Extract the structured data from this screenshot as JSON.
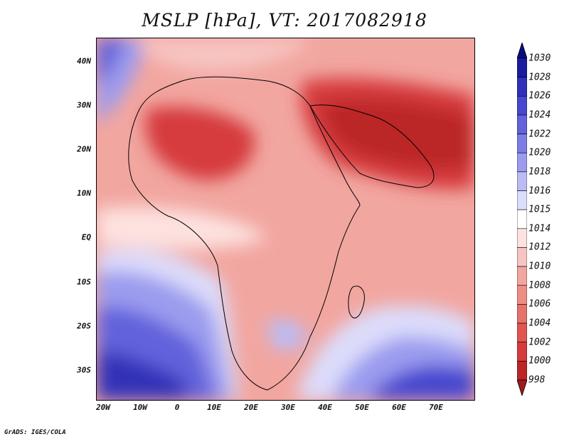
{
  "title": "MSLP [hPa], VT: 2017082918",
  "credit": "GrADS: IGES/COLA",
  "lat_labels": [
    "40N",
    "30N",
    "20N",
    "10N",
    "EQ",
    "10S",
    "20S",
    "30S"
  ],
  "lon_labels": [
    "20W",
    "10W",
    "0",
    "10E",
    "20E",
    "30E",
    "40E",
    "50E",
    "60E",
    "70E"
  ],
  "colorbar": {
    "levels": [
      "998",
      "1000",
      "1002",
      "1004",
      "1006",
      "1008",
      "1010",
      "1012",
      "1014",
      "1015",
      "1016",
      "1018",
      "1020",
      "1022",
      "1024",
      "1026",
      "1028",
      "1030"
    ],
    "colors": [
      "#a01a1d",
      "#bb2728",
      "#d63b3c",
      "#e05552",
      "#e7726b",
      "#ee8d86",
      "#f2a6a0",
      "#f7c5c1",
      "#fde2e0",
      "#ffffff",
      "#dcdcfb",
      "#bbbbf5",
      "#9b9bef",
      "#7d7de6",
      "#6262dc",
      "#4747cf",
      "#3030b8",
      "#1c1ca0",
      "#0b0b80"
    ]
  },
  "map": {
    "region": "Africa and Middle East",
    "extent": {
      "lon_min": -23,
      "lon_max": 80,
      "lat_min": -37,
      "lat_max": 45
    },
    "ocean_color": "#f3a7a0"
  }
}
